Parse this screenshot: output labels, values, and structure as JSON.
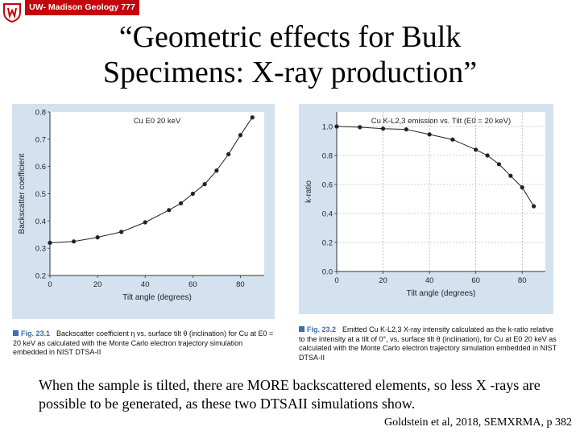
{
  "header": {
    "brand": "UW- Madison Geology  777",
    "title_line1": "“Geometric effects for Bulk",
    "title_line2": "Specimens: X-ray production”"
  },
  "colors": {
    "brand": "#c5050c",
    "panel": "#d4e2f0",
    "series": "#222222",
    "caption_accent": "#3c6fb0"
  },
  "chart_data": [
    {
      "type": "line",
      "title": "Cu E0    20 keV",
      "xlabel": "Tilt angle (degrees)",
      "ylabel": "Backscatter coefficient",
      "xlim": [
        0,
        90
      ],
      "ylim": [
        0.2,
        0.8
      ],
      "xticks": [
        "0",
        "20",
        "40",
        "60",
        "80"
      ],
      "yticks": [
        "0.2",
        "0.3",
        "0.4",
        "0.5",
        "0.6",
        "0.7",
        "0.8"
      ],
      "grid": false,
      "series": [
        {
          "x": [
            0,
            10,
            20,
            30,
            40,
            50,
            55,
            60,
            65,
            70,
            75,
            80,
            85
          ],
          "y": [
            0.32,
            0.325,
            0.34,
            0.36,
            0.395,
            0.44,
            0.465,
            0.5,
            0.535,
            0.585,
            0.645,
            0.715,
            0.78
          ]
        }
      ]
    },
    {
      "type": "line",
      "title": "Cu K-L2,3 emission vs. Tilt (E0 = 20 keV)",
      "xlabel": "Tilt angle (degrees)",
      "ylabel": "k-ratio",
      "xlim": [
        0,
        90
      ],
      "ylim": [
        0,
        1.1
      ],
      "xticks": [
        "0",
        "20",
        "40",
        "60",
        "80"
      ],
      "yticks": [
        "0.0",
        "0.2",
        "0.4",
        "0.6",
        "0.8",
        "1.0"
      ],
      "grid": true,
      "series": [
        {
          "x": [
            0,
            10,
            20,
            30,
            40,
            50,
            60,
            65,
            70,
            75,
            80,
            85
          ],
          "y": [
            1.0,
            0.995,
            0.985,
            0.98,
            0.945,
            0.91,
            0.84,
            0.8,
            0.74,
            0.66,
            0.58,
            0.45
          ]
        }
      ]
    }
  ],
  "captions": [
    {
      "num": "Fig. 23.1",
      "text": "Backscatter coefficient η vs. surface tilt θ (inclination) for Cu at E0 = 20 keV as calculated with the Monte Carlo electron trajectory simulation embedded in NIST DTSA-II"
    },
    {
      "num": "Fig. 23.2",
      "text": "Emitted Cu K-L2,3 X-ray intensity calculated as the k-ratio relative to the intensity at a tilt of 0°, vs. surface tilt θ (inclination), for Cu at E0   20 keV as calculated with the Monte Carlo electron trajectory simulation embedded in NIST DTSA-II"
    }
  ],
  "body_text": "When the sample is tilted, there are MORE backscattered elements, so less X -rays are possible to be generated, as these two DTSAII simulations show.",
  "citation": "Goldstein et al, 2018, SEMXRMA, p 382",
  "logo_icon": "crest-icon"
}
